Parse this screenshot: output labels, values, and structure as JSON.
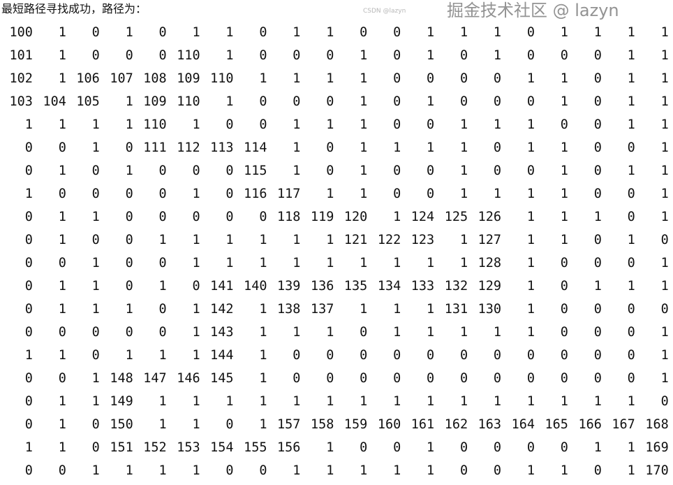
{
  "header": {
    "message": "最短路径寻找成功，路径为："
  },
  "matrix": [
    [
      100,
      1,
      0,
      1,
      0,
      1,
      1,
      0,
      1,
      1,
      0,
      0,
      1,
      1,
      1,
      0,
      1,
      1,
      1,
      1
    ],
    [
      101,
      1,
      0,
      0,
      0,
      110,
      1,
      0,
      0,
      0,
      1,
      0,
      1,
      0,
      1,
      0,
      0,
      0,
      1,
      1
    ],
    [
      102,
      1,
      106,
      107,
      108,
      109,
      110,
      1,
      1,
      1,
      1,
      0,
      0,
      0,
      0,
      1,
      1,
      0,
      1,
      1
    ],
    [
      103,
      104,
      105,
      1,
      109,
      110,
      1,
      0,
      0,
      0,
      1,
      0,
      1,
      0,
      0,
      0,
      1,
      0,
      1,
      1
    ],
    [
      1,
      1,
      1,
      1,
      110,
      1,
      0,
      0,
      1,
      1,
      1,
      0,
      0,
      1,
      1,
      1,
      0,
      0,
      1,
      1
    ],
    [
      0,
      0,
      1,
      0,
      111,
      112,
      113,
      114,
      1,
      0,
      1,
      1,
      1,
      1,
      0,
      1,
      1,
      0,
      0,
      1
    ],
    [
      0,
      1,
      0,
      1,
      0,
      0,
      0,
      115,
      1,
      0,
      1,
      0,
      0,
      1,
      0,
      0,
      1,
      0,
      1,
      1
    ],
    [
      1,
      0,
      0,
      0,
      0,
      1,
      0,
      116,
      117,
      1,
      1,
      0,
      0,
      1,
      1,
      1,
      1,
      0,
      0,
      1
    ],
    [
      0,
      1,
      1,
      0,
      0,
      0,
      0,
      0,
      118,
      119,
      120,
      1,
      124,
      125,
      126,
      1,
      1,
      1,
      0,
      1
    ],
    [
      0,
      1,
      0,
      0,
      1,
      1,
      1,
      1,
      1,
      1,
      121,
      122,
      123,
      1,
      127,
      1,
      1,
      0,
      1,
      0
    ],
    [
      0,
      0,
      1,
      0,
      0,
      1,
      1,
      1,
      1,
      1,
      1,
      1,
      1,
      1,
      128,
      1,
      0,
      0,
      0,
      1
    ],
    [
      0,
      1,
      1,
      0,
      1,
      0,
      141,
      140,
      139,
      136,
      135,
      134,
      133,
      132,
      129,
      1,
      0,
      1,
      1,
      1
    ],
    [
      0,
      1,
      1,
      1,
      0,
      1,
      142,
      1,
      138,
      137,
      1,
      1,
      1,
      131,
      130,
      1,
      0,
      0,
      0,
      0
    ],
    [
      0,
      0,
      0,
      0,
      0,
      1,
      143,
      1,
      1,
      1,
      0,
      1,
      1,
      1,
      1,
      1,
      0,
      0,
      0,
      1
    ],
    [
      1,
      1,
      0,
      1,
      1,
      1,
      144,
      1,
      0,
      0,
      0,
      0,
      0,
      0,
      0,
      0,
      0,
      0,
      0,
      1
    ],
    [
      0,
      0,
      1,
      148,
      147,
      146,
      145,
      1,
      0,
      0,
      0,
      0,
      0,
      0,
      0,
      0,
      0,
      0,
      0,
      1
    ],
    [
      0,
      1,
      1,
      149,
      1,
      1,
      1,
      1,
      1,
      1,
      1,
      1,
      1,
      1,
      1,
      1,
      1,
      1,
      1,
      0
    ],
    [
      0,
      1,
      0,
      150,
      1,
      1,
      0,
      1,
      157,
      158,
      159,
      160,
      161,
      162,
      163,
      164,
      165,
      166,
      167,
      168
    ],
    [
      1,
      1,
      0,
      151,
      152,
      153,
      154,
      155,
      156,
      1,
      0,
      0,
      1,
      0,
      0,
      0,
      0,
      1,
      1,
      169
    ],
    [
      0,
      0,
      1,
      1,
      1,
      1,
      0,
      0,
      1,
      1,
      1,
      1,
      1,
      0,
      0,
      1,
      1,
      0,
      1,
      170
    ]
  ],
  "watermark": {
    "main": "掘金技术社区 @ lazyn",
    "small": "CSDN @lazyn"
  }
}
